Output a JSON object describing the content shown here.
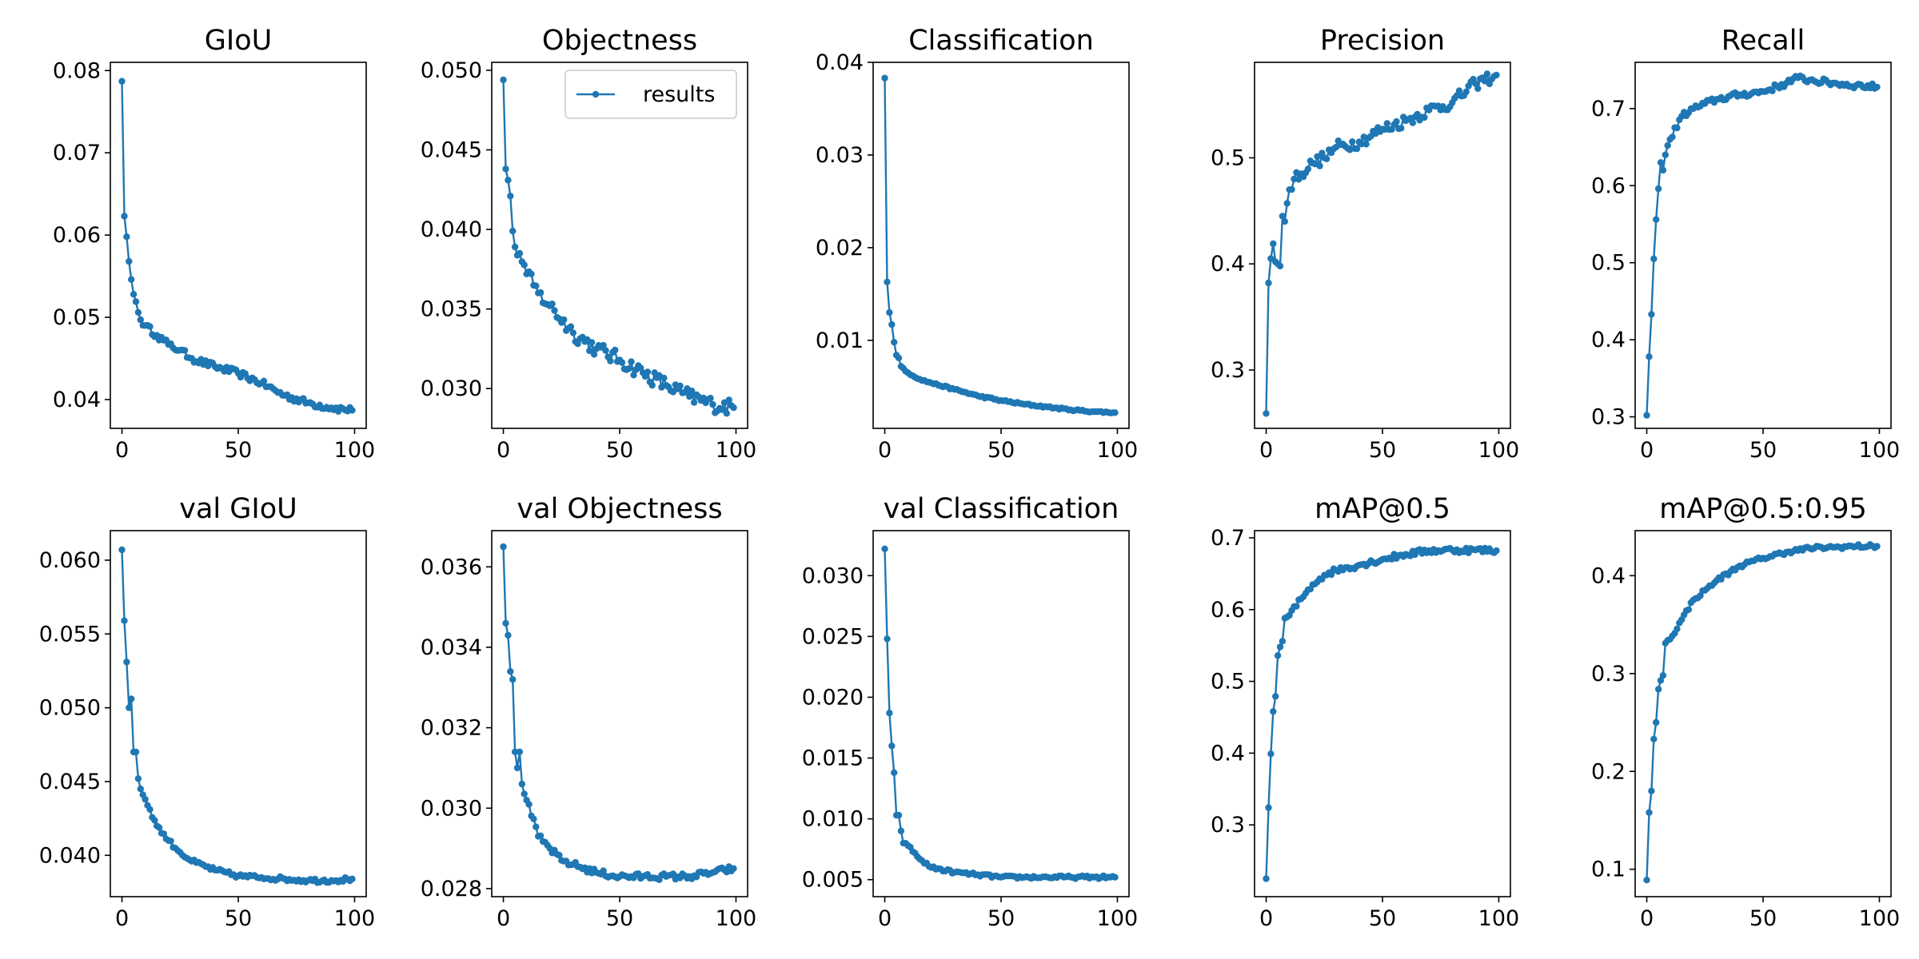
{
  "figure": {
    "color": "#1f77b4"
  },
  "legend": {
    "label": "results"
  },
  "chart_data": [
    {
      "type": "line",
      "title": "GIoU",
      "xlim": [
        -5,
        105
      ],
      "ylim": [
        0.0365,
        0.081
      ],
      "xticks": [
        0,
        50,
        100
      ],
      "yticks": [
        0.04,
        0.05,
        0.06,
        0.07,
        0.08
      ],
      "yticklabels": [
        "0.04",
        "0.05",
        "0.06",
        "0.07",
        "0.08"
      ],
      "xticklabels": [
        "0",
        "50",
        "100"
      ],
      "legend": false,
      "anchors": [
        [
          0,
          0.0787
        ],
        [
          1,
          0.0623
        ],
        [
          2,
          0.0598
        ],
        [
          3,
          0.0568
        ],
        [
          4,
          0.0546
        ],
        [
          5,
          0.0528
        ],
        [
          6,
          0.0519
        ],
        [
          7,
          0.0506
        ],
        [
          8,
          0.0497
        ],
        [
          10,
          0.049
        ],
        [
          15,
          0.0478
        ],
        [
          20,
          0.0467
        ],
        [
          25,
          0.046
        ],
        [
          30,
          0.045
        ],
        [
          40,
          0.044
        ],
        [
          50,
          0.0432
        ],
        [
          60,
          0.042
        ],
        [
          70,
          0.0405
        ],
        [
          80,
          0.0396
        ],
        [
          90,
          0.039
        ],
        [
          99,
          0.0387
        ]
      ],
      "noise": 0.0004
    },
    {
      "type": "line",
      "title": "Objectness",
      "xlim": [
        -5,
        105
      ],
      "ylim": [
        0.0275,
        0.0505
      ],
      "xticks": [
        0,
        50,
        100
      ],
      "yticks": [
        0.03,
        0.035,
        0.04,
        0.045,
        0.05
      ],
      "yticklabels": [
        "0.030",
        "0.035",
        "0.040",
        "0.045",
        "0.050"
      ],
      "xticklabels": [
        "0",
        "50",
        "100"
      ],
      "legend": true,
      "anchors": [
        [
          0,
          0.0494
        ],
        [
          1,
          0.0438
        ],
        [
          2,
          0.0431
        ],
        [
          3,
          0.0421
        ],
        [
          4,
          0.0399
        ],
        [
          5,
          0.0389
        ],
        [
          7,
          0.0385
        ],
        [
          10,
          0.0372
        ],
        [
          15,
          0.036
        ],
        [
          20,
          0.0352
        ],
        [
          30,
          0.0335
        ],
        [
          40,
          0.0325
        ],
        [
          50,
          0.0318
        ],
        [
          60,
          0.031
        ],
        [
          70,
          0.0302
        ],
        [
          80,
          0.0295
        ],
        [
          90,
          0.029
        ],
        [
          99,
          0.0288
        ]
      ],
      "noise": 0.0005
    },
    {
      "type": "line",
      "title": "Classification",
      "xlim": [
        -5,
        105
      ],
      "ylim": [
        0.0005,
        0.04
      ],
      "xticks": [
        0,
        50,
        100
      ],
      "yticks": [
        0.01,
        0.02,
        0.03,
        0.04
      ],
      "yticklabels": [
        "0.01",
        "0.02",
        "0.03",
        "0.04"
      ],
      "xticklabels": [
        "0",
        "50",
        "100"
      ],
      "legend": false,
      "anchors": [
        [
          0,
          0.0383
        ],
        [
          1,
          0.0163
        ],
        [
          2,
          0.013
        ],
        [
          3,
          0.0117
        ],
        [
          4,
          0.0098
        ],
        [
          5,
          0.0084
        ],
        [
          6,
          0.0081
        ],
        [
          7,
          0.0072
        ],
        [
          10,
          0.0065
        ],
        [
          15,
          0.0058
        ],
        [
          20,
          0.0054
        ],
        [
          30,
          0.0047
        ],
        [
          40,
          0.004
        ],
        [
          50,
          0.0035
        ],
        [
          60,
          0.0031
        ],
        [
          70,
          0.0028
        ],
        [
          80,
          0.0025
        ],
        [
          90,
          0.0023
        ],
        [
          99,
          0.0022
        ]
      ],
      "noise": 0.0001
    },
    {
      "type": "line",
      "title": "Precision",
      "xlim": [
        -5,
        105
      ],
      "ylim": [
        0.245,
        0.59
      ],
      "xticks": [
        0,
        50,
        100
      ],
      "yticks": [
        0.3,
        0.4,
        0.5
      ],
      "yticklabels": [
        "0.3",
        "0.4",
        "0.5"
      ],
      "xticklabels": [
        "0",
        "50",
        "100"
      ],
      "legend": false,
      "anchors": [
        [
          0,
          0.259
        ],
        [
          1,
          0.382
        ],
        [
          2,
          0.405
        ],
        [
          3,
          0.419
        ],
        [
          4,
          0.402
        ],
        [
          5,
          0.4
        ],
        [
          6,
          0.398
        ],
        [
          7,
          0.445
        ],
        [
          8,
          0.44
        ],
        [
          10,
          0.47
        ],
        [
          12,
          0.48
        ],
        [
          15,
          0.485
        ],
        [
          20,
          0.495
        ],
        [
          25,
          0.5
        ],
        [
          30,
          0.51
        ],
        [
          40,
          0.515
        ],
        [
          50,
          0.527
        ],
        [
          60,
          0.535
        ],
        [
          70,
          0.545
        ],
        [
          80,
          0.552
        ],
        [
          90,
          0.57
        ],
        [
          99,
          0.578
        ]
      ],
      "noise": 0.006
    },
    {
      "type": "line",
      "title": "Recall",
      "xlim": [
        -5,
        105
      ],
      "ylim": [
        0.285,
        0.76
      ],
      "xticks": [
        0,
        50,
        100
      ],
      "yticks": [
        0.3,
        0.4,
        0.5,
        0.6,
        0.7
      ],
      "yticklabels": [
        "0.3",
        "0.4",
        "0.5",
        "0.6",
        "0.7"
      ],
      "xticklabels": [
        "0",
        "50",
        "100"
      ],
      "legend": false,
      "anchors": [
        [
          0,
          0.302
        ],
        [
          1,
          0.378
        ],
        [
          2,
          0.433
        ],
        [
          3,
          0.505
        ],
        [
          4,
          0.556
        ],
        [
          5,
          0.596
        ],
        [
          6,
          0.63
        ],
        [
          7,
          0.62
        ],
        [
          8,
          0.64
        ],
        [
          10,
          0.66
        ],
        [
          15,
          0.69
        ],
        [
          20,
          0.7
        ],
        [
          30,
          0.712
        ],
        [
          40,
          0.718
        ],
        [
          50,
          0.722
        ],
        [
          60,
          0.733
        ],
        [
          65,
          0.74
        ],
        [
          70,
          0.737
        ],
        [
          80,
          0.733
        ],
        [
          90,
          0.73
        ],
        [
          99,
          0.728
        ]
      ],
      "noise": 0.004
    },
    {
      "type": "line",
      "title": "val GIoU",
      "xlim": [
        -5,
        105
      ],
      "ylim": [
        0.0372,
        0.062
      ],
      "xticks": [
        0,
        50,
        100
      ],
      "yticks": [
        0.04,
        0.045,
        0.05,
        0.055,
        0.06
      ],
      "yticklabels": [
        "0.040",
        "0.045",
        "0.050",
        "0.055",
        "0.060"
      ],
      "xticklabels": [
        "0",
        "50",
        "100"
      ],
      "legend": false,
      "anchors": [
        [
          0,
          0.0607
        ],
        [
          1,
          0.0559
        ],
        [
          2,
          0.0531
        ],
        [
          3,
          0.05
        ],
        [
          4,
          0.0506
        ],
        [
          5,
          0.047
        ],
        [
          6,
          0.047
        ],
        [
          7,
          0.0452
        ],
        [
          8,
          0.0445
        ],
        [
          10,
          0.0438
        ],
        [
          15,
          0.042
        ],
        [
          20,
          0.041
        ],
        [
          25,
          0.0402
        ],
        [
          30,
          0.0396
        ],
        [
          40,
          0.039
        ],
        [
          50,
          0.0386
        ],
        [
          60,
          0.0385
        ],
        [
          70,
          0.0384
        ],
        [
          80,
          0.0383
        ],
        [
          90,
          0.0383
        ],
        [
          99,
          0.0384
        ]
      ],
      "noise": 0.00015
    },
    {
      "type": "line",
      "title": "val Objectness",
      "xlim": [
        -5,
        105
      ],
      "ylim": [
        0.0278,
        0.0369
      ],
      "xticks": [
        0,
        50,
        100
      ],
      "yticks": [
        0.028,
        0.03,
        0.032,
        0.034,
        0.036
      ],
      "yticklabels": [
        "0.028",
        "0.030",
        "0.032",
        "0.034",
        "0.036"
      ],
      "xticklabels": [
        "0",
        "50",
        "100"
      ],
      "legend": false,
      "anchors": [
        [
          0,
          0.0365
        ],
        [
          1,
          0.0346
        ],
        [
          2,
          0.0343
        ],
        [
          3,
          0.0334
        ],
        [
          4,
          0.0332
        ],
        [
          5,
          0.0314
        ],
        [
          6,
          0.031
        ],
        [
          7,
          0.0314
        ],
        [
          8,
          0.0306
        ],
        [
          10,
          0.0302
        ],
        [
          15,
          0.0293
        ],
        [
          20,
          0.029
        ],
        [
          25,
          0.0287
        ],
        [
          30,
          0.0286
        ],
        [
          40,
          0.0284
        ],
        [
          50,
          0.0283
        ],
        [
          60,
          0.0283
        ],
        [
          70,
          0.0283
        ],
        [
          80,
          0.0283
        ],
        [
          90,
          0.0284
        ],
        [
          99,
          0.0285
        ]
      ],
      "noise": 8e-05
    },
    {
      "type": "line",
      "title": "val Classification",
      "xlim": [
        -5,
        105
      ],
      "ylim": [
        0.0036,
        0.0337
      ],
      "xticks": [
        0,
        50,
        100
      ],
      "yticks": [
        0.005,
        0.01,
        0.015,
        0.02,
        0.025,
        0.03
      ],
      "yticklabels": [
        "0.005",
        "0.010",
        "0.015",
        "0.020",
        "0.025",
        "0.030"
      ],
      "xticklabels": [
        "0",
        "50",
        "100"
      ],
      "legend": false,
      "anchors": [
        [
          0,
          0.0322
        ],
        [
          1,
          0.0248
        ],
        [
          2,
          0.0187
        ],
        [
          3,
          0.016
        ],
        [
          4,
          0.0138
        ],
        [
          5,
          0.0103
        ],
        [
          6,
          0.0103
        ],
        [
          7,
          0.009
        ],
        [
          8,
          0.008
        ],
        [
          10,
          0.0078
        ],
        [
          15,
          0.0067
        ],
        [
          20,
          0.006
        ],
        [
          30,
          0.0056
        ],
        [
          40,
          0.0054
        ],
        [
          50,
          0.0052
        ],
        [
          60,
          0.0052
        ],
        [
          70,
          0.0052
        ],
        [
          80,
          0.0052
        ],
        [
          90,
          0.0052
        ],
        [
          99,
          0.0052
        ]
      ],
      "noise": 0.00012
    },
    {
      "type": "line",
      "title": "mAP@0.5",
      "xlim": [
        -5,
        105
      ],
      "ylim": [
        0.2,
        0.71
      ],
      "xticks": [
        0,
        50,
        100
      ],
      "yticks": [
        0.3,
        0.4,
        0.5,
        0.6,
        0.7
      ],
      "yticklabels": [
        "0.3",
        "0.4",
        "0.5",
        "0.6",
        "0.7"
      ],
      "xticklabels": [
        "0",
        "50",
        "100"
      ],
      "legend": false,
      "anchors": [
        [
          0,
          0.225
        ],
        [
          1,
          0.324
        ],
        [
          2,
          0.399
        ],
        [
          3,
          0.458
        ],
        [
          4,
          0.479
        ],
        [
          5,
          0.536
        ],
        [
          6,
          0.548
        ],
        [
          7,
          0.556
        ],
        [
          8,
          0.588
        ],
        [
          10,
          0.592
        ],
        [
          15,
          0.615
        ],
        [
          20,
          0.635
        ],
        [
          25,
          0.648
        ],
        [
          30,
          0.655
        ],
        [
          40,
          0.662
        ],
        [
          50,
          0.67
        ],
        [
          60,
          0.677
        ],
        [
          70,
          0.682
        ],
        [
          80,
          0.683
        ],
        [
          90,
          0.683
        ],
        [
          99,
          0.682
        ]
      ],
      "noise": 0.004
    },
    {
      "type": "line",
      "title": "mAP@0.5:0.95",
      "xlim": [
        -5,
        105
      ],
      "ylim": [
        0.072,
        0.446
      ],
      "xticks": [
        0,
        50,
        100
      ],
      "yticks": [
        0.1,
        0.2,
        0.3,
        0.4
      ],
      "yticklabels": [
        "0.1",
        "0.2",
        "0.3",
        "0.4"
      ],
      "xticklabels": [
        "0",
        "50",
        "100"
      ],
      "legend": false,
      "anchors": [
        [
          0,
          0.089
        ],
        [
          1,
          0.158
        ],
        [
          2,
          0.18
        ],
        [
          3,
          0.233
        ],
        [
          4,
          0.25
        ],
        [
          5,
          0.284
        ],
        [
          6,
          0.293
        ],
        [
          7,
          0.298
        ],
        [
          8,
          0.331
        ],
        [
          10,
          0.335
        ],
        [
          15,
          0.355
        ],
        [
          20,
          0.375
        ],
        [
          25,
          0.385
        ],
        [
          30,
          0.395
        ],
        [
          40,
          0.41
        ],
        [
          50,
          0.418
        ],
        [
          60,
          0.424
        ],
        [
          70,
          0.428
        ],
        [
          80,
          0.429
        ],
        [
          90,
          0.43
        ],
        [
          99,
          0.43
        ]
      ],
      "noise": 0.002
    }
  ]
}
